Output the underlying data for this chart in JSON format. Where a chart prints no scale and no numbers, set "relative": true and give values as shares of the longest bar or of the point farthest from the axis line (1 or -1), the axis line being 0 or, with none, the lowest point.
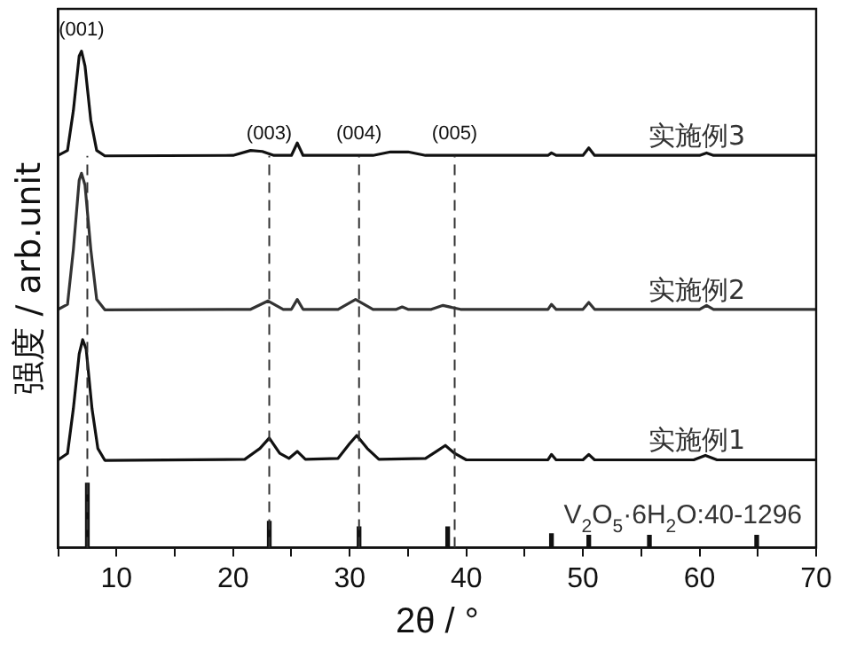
{
  "chart_data": {
    "type": "line",
    "xlabel": "2θ / °",
    "ylabel": "强度 / arb.unit",
    "relative": true,
    "tick_labels": "x",
    "grid": false,
    "legend": false,
    "marker": "none",
    "line_style": "solid",
    "xlim": [
      5,
      70
    ],
    "xticks": [
      {
        "value": 5,
        "label": null
      },
      10,
      {
        "value": 15,
        "label": null
      },
      20,
      {
        "value": 25,
        "label": null
      },
      30,
      {
        "value": 35,
        "label": null
      },
      40,
      {
        "value": 45,
        "label": null
      },
      50,
      {
        "value": 55,
        "label": null
      },
      60,
      {
        "value": 65,
        "label": null
      },
      70
    ],
    "series": [
      {
        "name": "实施例3",
        "color": "#111111",
        "x": [
          5,
          5.8,
          6.3,
          6.8,
          7.0,
          7.3,
          7.8,
          8.3,
          9,
          20,
          21.5,
          22.5,
          23.5,
          25,
          25.5,
          26,
          32,
          33.5,
          35,
          36.5,
          47,
          47.3,
          47.7,
          50,
          50.5,
          51,
          60,
          60.6,
          61.2,
          70
        ],
        "values": [
          0.79,
          0.8,
          0.88,
          0.99,
          1.0,
          0.97,
          0.86,
          0.8,
          0.789,
          0.79,
          0.8,
          0.798,
          0.79,
          0.79,
          0.815,
          0.79,
          0.79,
          0.797,
          0.797,
          0.79,
          0.79,
          0.795,
          0.79,
          0.79,
          0.805,
          0.79,
          0.79,
          0.795,
          0.79,
          0.79
        ]
      },
      {
        "name": "实施例2",
        "color": "#333333",
        "x": [
          5,
          5.8,
          6.3,
          6.8,
          7.0,
          7.3,
          7.8,
          8.3,
          9,
          21.5,
          23,
          24.3,
          25,
          25.5,
          26,
          29,
          30.5,
          32,
          34,
          34.5,
          35,
          37,
          38,
          39.5,
          47,
          47.3,
          47.7,
          50,
          50.5,
          51,
          60,
          60.6,
          61.2,
          70
        ],
        "values": [
          0.48,
          0.49,
          0.6,
          0.74,
          0.754,
          0.73,
          0.6,
          0.5,
          0.479,
          0.48,
          0.497,
          0.48,
          0.48,
          0.5,
          0.48,
          0.48,
          0.5,
          0.48,
          0.48,
          0.485,
          0.48,
          0.48,
          0.488,
          0.48,
          0.48,
          0.49,
          0.48,
          0.48,
          0.494,
          0.48,
          0.48,
          0.488,
          0.48,
          0.48
        ]
      },
      {
        "name": "实施例1",
        "color": "#111111",
        "x": [
          5,
          5.8,
          6.3,
          6.8,
          7.1,
          7.4,
          7.9,
          8.4,
          9,
          21,
          22.3,
          23.1,
          24,
          24.8,
          25.5,
          26.2,
          29,
          30,
          30.6,
          31.5,
          32.5,
          36.5,
          37.5,
          38.2,
          39,
          40,
          47,
          47.3,
          47.7,
          50,
          50.5,
          51,
          59.5,
          60.5,
          61.5,
          70
        ],
        "values": [
          0.177,
          0.19,
          0.28,
          0.39,
          0.419,
          0.4,
          0.28,
          0.2,
          0.176,
          0.178,
          0.2,
          0.221,
          0.19,
          0.18,
          0.194,
          0.178,
          0.18,
          0.21,
          0.226,
          0.2,
          0.178,
          0.18,
          0.195,
          0.206,
          0.19,
          0.177,
          0.177,
          0.188,
          0.177,
          0.177,
          0.188,
          0.177,
          0.177,
          0.186,
          0.177,
          0.177
        ]
      },
      {
        "name": "V$_{2}$O$_{5}$·6H$_{2}$O:40-1296",
        "type": "bar",
        "color": "#111111",
        "x": [
          7.5,
          23.1,
          30.8,
          38.4,
          47.3,
          50.5,
          55.7,
          64.9
        ],
        "values": [
          0.13,
          0.053,
          0.042,
          0.042,
          0.028,
          0.025,
          0.025,
          0.025
        ]
      }
    ],
    "ref_lines": [
      {
        "axis": "x",
        "value": 7.5,
        "color": "#333333",
        "line_style": "dashed"
      },
      {
        "axis": "x",
        "value": 23.1,
        "color": "#333333",
        "line_style": "dashed"
      },
      {
        "axis": "x",
        "value": 30.8,
        "color": "#333333",
        "line_style": "dashed"
      },
      {
        "axis": "x",
        "value": 39,
        "color": "#333333",
        "line_style": "dashed"
      }
    ],
    "annotations": [
      {
        "text": "(001)",
        "x": 7.0,
        "y": 1.0
      },
      {
        "text": "(003)",
        "x": 23.1,
        "y": 0.79
      },
      {
        "text": "(004)",
        "x": 30.8,
        "y": 0.79
      },
      {
        "text": "(005)",
        "x": 39,
        "y": 0.79
      }
    ]
  }
}
